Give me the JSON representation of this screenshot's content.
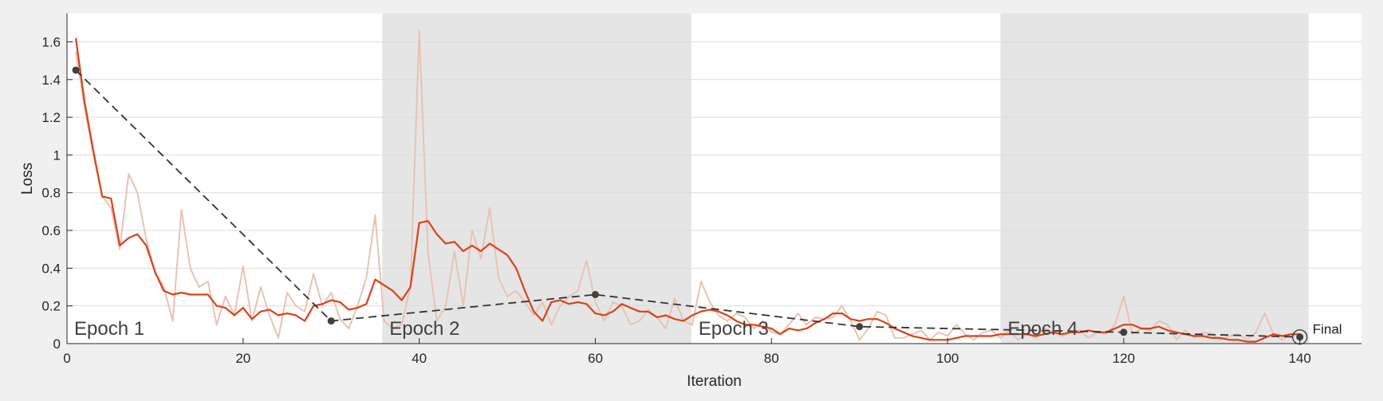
{
  "chart_data": {
    "type": "line",
    "title": "",
    "xlabel": "Iteration",
    "ylabel": "Loss",
    "xlim": [
      0,
      147
    ],
    "ylim": [
      0,
      1.75
    ],
    "xticks": [
      0,
      20,
      40,
      60,
      80,
      100,
      120,
      140
    ],
    "yticks": [
      0,
      0.2,
      0.4,
      0.6,
      0.8,
      1,
      1.2,
      1.4,
      1.6
    ],
    "ytick_labels": [
      "0",
      "0.2",
      "0.4",
      "0.6",
      "0.8",
      "1",
      "1.2",
      "1.4",
      "1.6"
    ],
    "grid": "y",
    "epoch_bands": [
      {
        "label": "Epoch 1",
        "start": 0,
        "end": 35.8,
        "shaded": false
      },
      {
        "label": "Epoch 2",
        "start": 35.8,
        "end": 70.9,
        "shaded": true
      },
      {
        "label": "Epoch 3",
        "start": 70.9,
        "end": 106,
        "shaded": false
      },
      {
        "label": "Epoch 4",
        "start": 106,
        "end": 141,
        "shaded": true
      }
    ],
    "series": [
      {
        "role": "raw",
        "color": "#e8c2b4",
        "x": [
          1,
          2,
          3,
          4,
          5,
          6,
          7,
          8,
          9,
          10,
          11,
          12,
          13,
          14,
          15,
          16,
          17,
          18,
          19,
          20,
          21,
          22,
          23,
          24,
          25,
          26,
          27,
          28,
          29,
          30,
          31,
          32,
          33,
          34,
          35,
          36,
          37,
          38,
          39,
          40,
          41,
          42,
          43,
          44,
          45,
          46,
          47,
          48,
          49,
          50,
          51,
          52,
          53,
          54,
          55,
          56,
          57,
          58,
          59,
          60,
          61,
          62,
          63,
          64,
          65,
          66,
          67,
          68,
          69,
          70,
          71,
          72,
          73,
          74,
          75,
          76,
          77,
          78,
          79,
          80,
          81,
          82,
          83,
          84,
          85,
          86,
          87,
          88,
          89,
          90,
          91,
          92,
          93,
          94,
          95,
          96,
          97,
          98,
          99,
          100,
          101,
          102,
          103,
          104,
          105,
          106,
          107,
          108,
          109,
          110,
          111,
          112,
          113,
          114,
          115,
          116,
          117,
          118,
          119,
          120,
          121,
          122,
          123,
          124,
          125,
          126,
          127,
          128,
          129,
          130,
          131,
          132,
          133,
          134,
          135,
          136,
          137,
          138,
          139,
          140
        ],
        "y": [
          1.55,
          1.25,
          1.0,
          0.78,
          0.72,
          0.5,
          0.9,
          0.8,
          0.55,
          0.38,
          0.3,
          0.12,
          0.71,
          0.4,
          0.3,
          0.33,
          0.1,
          0.25,
          0.15,
          0.41,
          0.12,
          0.3,
          0.15,
          0.03,
          0.27,
          0.2,
          0.17,
          0.37,
          0.2,
          0.27,
          0.13,
          0.08,
          0.2,
          0.35,
          0.68,
          0.12,
          0.08,
          0.1,
          0.3,
          1.66,
          0.48,
          0.12,
          0.2,
          0.49,
          0.2,
          0.6,
          0.45,
          0.72,
          0.35,
          0.25,
          0.28,
          0.22,
          0.15,
          0.22,
          0.1,
          0.2,
          0.25,
          0.28,
          0.44,
          0.22,
          0.12,
          0.22,
          0.2,
          0.1,
          0.12,
          0.18,
          0.14,
          0.08,
          0.24,
          0.12,
          0.1,
          0.33,
          0.22,
          0.15,
          0.12,
          0.16,
          0.14,
          0.08,
          0.12,
          0.06,
          0.05,
          0.1,
          0.16,
          0.1,
          0.14,
          0.13,
          0.14,
          0.2,
          0.12,
          0.02,
          0.08,
          0.17,
          0.15,
          0.03,
          0.03,
          0.05,
          0.07,
          0.02,
          0.06,
          0.04,
          0.1,
          0.05,
          0.02,
          0.06,
          0.07,
          0.03,
          0.07,
          0.02,
          0.05,
          0.03,
          0.08,
          0.06,
          0.04,
          0.06,
          0.07,
          0.03,
          0.06,
          0.05,
          0.1,
          0.25,
          0.05,
          0.08,
          0.07,
          0.12,
          0.1,
          0.02,
          0.07,
          0.03,
          0.06,
          0.05,
          0.02,
          0.04,
          0.05,
          0.02,
          0.06,
          0.16,
          0.05,
          0.02,
          0.05,
          0.04
        ]
      },
      {
        "role": "smoothed",
        "color": "#d9421a",
        "x": [
          1,
          2,
          3,
          4,
          5,
          6,
          7,
          8,
          9,
          10,
          11,
          12,
          13,
          14,
          15,
          16,
          17,
          18,
          19,
          20,
          21,
          22,
          23,
          24,
          25,
          26,
          27,
          28,
          29,
          30,
          31,
          32,
          33,
          34,
          35,
          36,
          37,
          38,
          39,
          40,
          41,
          42,
          43,
          44,
          45,
          46,
          47,
          48,
          49,
          50,
          51,
          52,
          53,
          54,
          55,
          56,
          57,
          58,
          59,
          60,
          61,
          62,
          63,
          64,
          65,
          66,
          67,
          68,
          69,
          70,
          71,
          72,
          73,
          74,
          75,
          76,
          77,
          78,
          79,
          80,
          81,
          82,
          83,
          84,
          85,
          86,
          87,
          88,
          89,
          90,
          91,
          92,
          93,
          94,
          95,
          96,
          97,
          98,
          99,
          100,
          101,
          102,
          103,
          104,
          105,
          106,
          107,
          108,
          109,
          110,
          111,
          112,
          113,
          114,
          115,
          116,
          117,
          118,
          119,
          120,
          121,
          122,
          123,
          124,
          125,
          126,
          127,
          128,
          129,
          130,
          131,
          132,
          133,
          134,
          135,
          136,
          137,
          138,
          139,
          140
        ],
        "y": [
          1.62,
          1.28,
          1.02,
          0.78,
          0.77,
          0.52,
          0.56,
          0.58,
          0.52,
          0.38,
          0.28,
          0.26,
          0.27,
          0.26,
          0.26,
          0.26,
          0.2,
          0.19,
          0.15,
          0.19,
          0.13,
          0.17,
          0.18,
          0.15,
          0.16,
          0.15,
          0.12,
          0.2,
          0.21,
          0.23,
          0.22,
          0.18,
          0.19,
          0.21,
          0.34,
          0.31,
          0.28,
          0.23,
          0.3,
          0.64,
          0.65,
          0.58,
          0.53,
          0.54,
          0.49,
          0.52,
          0.49,
          0.53,
          0.5,
          0.47,
          0.4,
          0.28,
          0.17,
          0.12,
          0.22,
          0.23,
          0.21,
          0.22,
          0.21,
          0.16,
          0.15,
          0.17,
          0.21,
          0.19,
          0.17,
          0.17,
          0.14,
          0.15,
          0.13,
          0.12,
          0.15,
          0.17,
          0.18,
          0.17,
          0.15,
          0.12,
          0.1,
          0.1,
          0.09,
          0.08,
          0.05,
          0.08,
          0.07,
          0.08,
          0.11,
          0.13,
          0.16,
          0.16,
          0.13,
          0.12,
          0.13,
          0.13,
          0.11,
          0.08,
          0.06,
          0.04,
          0.03,
          0.02,
          0.02,
          0.02,
          0.03,
          0.04,
          0.04,
          0.04,
          0.04,
          0.05,
          0.05,
          0.05,
          0.05,
          0.04,
          0.05,
          0.06,
          0.05,
          0.06,
          0.06,
          0.07,
          0.06,
          0.06,
          0.08,
          0.1,
          0.1,
          0.08,
          0.08,
          0.09,
          0.07,
          0.06,
          0.05,
          0.04,
          0.04,
          0.03,
          0.03,
          0.02,
          0.02,
          0.01,
          0.01,
          0.03,
          0.05,
          0.04,
          0.05,
          0.05
        ]
      },
      {
        "role": "epoch_checkpoints",
        "color": "#333333",
        "style": "dashed",
        "x": [
          1,
          30,
          60,
          90,
          120,
          140
        ],
        "y": [
          1.45,
          0.12,
          0.26,
          0.09,
          0.06,
          0.035
        ]
      }
    ],
    "annotations": [
      {
        "text": "Final",
        "x": 140,
        "y": 0.035
      }
    ]
  }
}
